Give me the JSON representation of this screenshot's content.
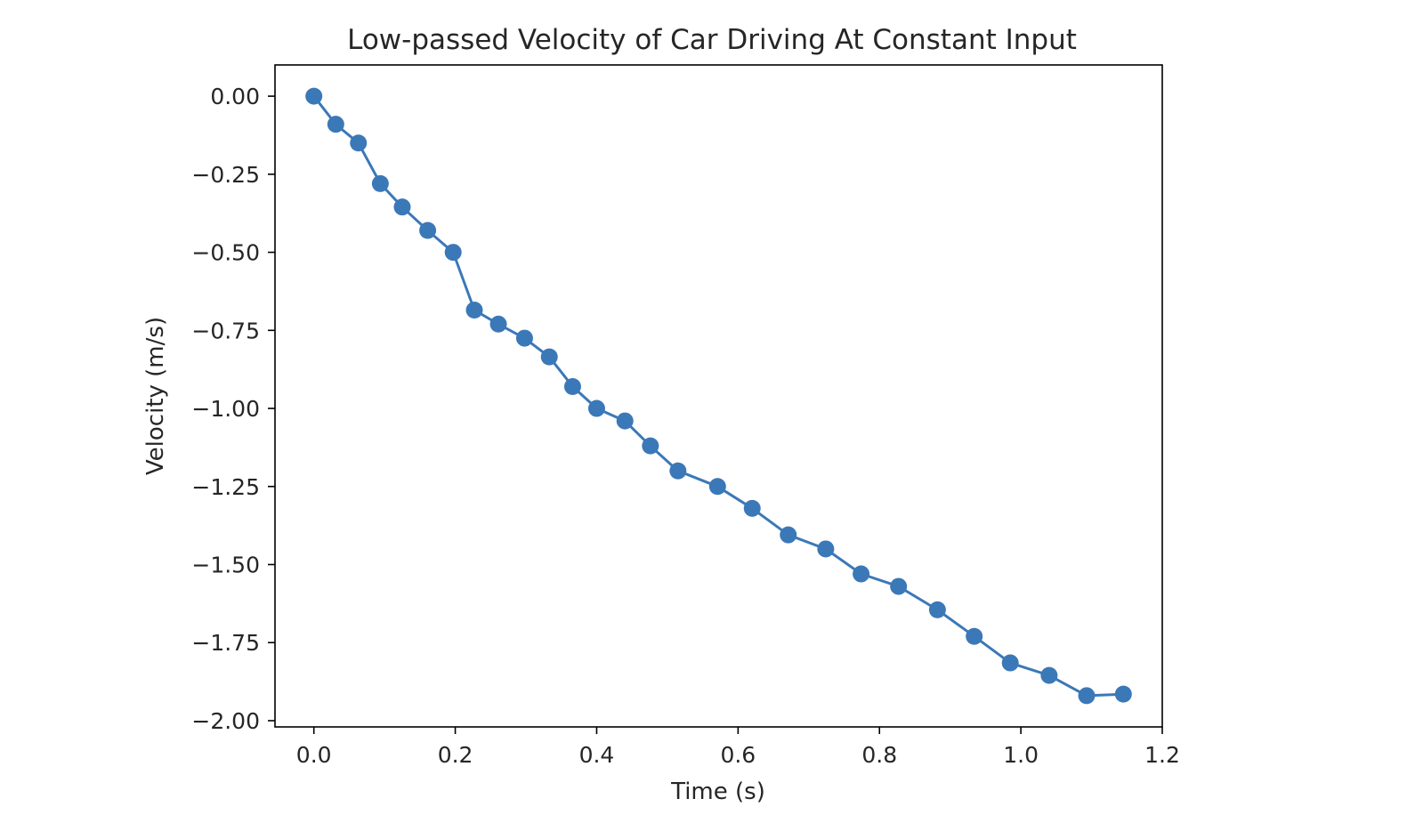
{
  "chart_data": {
    "type": "line",
    "title": "Low-passed Velocity of Car Driving At Constant Input",
    "xlabel": "Time (s)",
    "ylabel": "Velocity (m/s)",
    "xlim": [
      -0.055,
      1.2
    ],
    "ylim": [
      -2.02,
      0.1
    ],
    "x_ticks": [
      0.0,
      0.2,
      0.4,
      0.6,
      0.8,
      1.0,
      1.2
    ],
    "x_tick_labels": [
      "0.0",
      "0.2",
      "0.4",
      "0.6",
      "0.8",
      "1.0",
      "1.2"
    ],
    "y_ticks": [
      0.0,
      -0.25,
      -0.5,
      -0.75,
      -1.0,
      -1.25,
      -1.5,
      -1.75,
      -2.0
    ],
    "y_tick_labels": [
      "0.00",
      "−0.25",
      "−0.50",
      "−0.75",
      "−1.00",
      "−1.25",
      "−1.50",
      "−1.75",
      "−2.00"
    ],
    "grid": false,
    "series": [
      {
        "color": "#3b78b8",
        "marker": "circle",
        "x": [
          0.0,
          0.031,
          0.063,
          0.094,
          0.125,
          0.161,
          0.197,
          0.227,
          0.261,
          0.298,
          0.333,
          0.366,
          0.4,
          0.44,
          0.476,
          0.515,
          0.571,
          0.62,
          0.671,
          0.724,
          0.774,
          0.827,
          0.882,
          0.934,
          0.985,
          1.04,
          1.093,
          1.145
        ],
        "y": [
          0.0,
          -0.09,
          -0.15,
          -0.28,
          -0.355,
          -0.43,
          -0.5,
          -0.685,
          -0.73,
          -0.775,
          -0.835,
          -0.93,
          -1.0,
          -1.04,
          -1.12,
          -1.2,
          -1.25,
          -1.32,
          -1.405,
          -1.45,
          -1.53,
          -1.57,
          -1.645,
          -1.73,
          -1.815,
          -1.855,
          -1.92,
          -1.915
        ]
      }
    ]
  }
}
